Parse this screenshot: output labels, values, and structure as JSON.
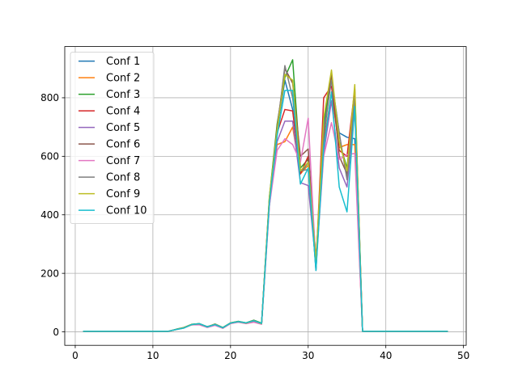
{
  "chart_data": {
    "type": "line",
    "title": "",
    "xlabel": "",
    "ylabel": "",
    "xlim": [
      -1.35,
      50.35
    ],
    "ylim": [
      -46,
      975
    ],
    "xticks": [
      0,
      10,
      20,
      30,
      40,
      50
    ],
    "yticks": [
      0,
      200,
      400,
      600,
      800
    ],
    "grid": true,
    "legend_position": "upper-left",
    "x": [
      1,
      2,
      3,
      4,
      5,
      6,
      7,
      8,
      9,
      10,
      11,
      12,
      13,
      14,
      15,
      16,
      17,
      18,
      19,
      20,
      21,
      22,
      23,
      24,
      25,
      26,
      27,
      28,
      29,
      30,
      31,
      32,
      33,
      34,
      35,
      36,
      37,
      38,
      39,
      40,
      41,
      42,
      43,
      44,
      45,
      46,
      47,
      48
    ],
    "series": [
      {
        "name": "Conf 1",
        "color": "#1f77b4",
        "values": [
          2,
          2,
          2,
          2,
          2,
          2,
          2,
          2,
          2,
          2,
          2,
          2,
          8,
          14,
          25,
          28,
          18,
          25,
          14,
          30,
          35,
          30,
          38,
          28,
          450,
          690,
          860,
          760,
          540,
          580,
          210,
          700,
          870,
          680,
          665,
          660,
          2,
          2,
          2,
          2,
          2,
          2,
          2,
          2,
          2,
          2,
          2,
          2
        ]
      },
      {
        "name": "Conf 2",
        "color": "#ff7f0e",
        "values": [
          2,
          2,
          2,
          2,
          2,
          2,
          2,
          2,
          2,
          2,
          2,
          2,
          8,
          14,
          24,
          26,
          16,
          24,
          13,
          29,
          34,
          29,
          35,
          27,
          440,
          640,
          650,
          700,
          540,
          570,
          230,
          640,
          820,
          630,
          640,
          640,
          2,
          2,
          2,
          2,
          2,
          2,
          2,
          2,
          2,
          2,
          2,
          2
        ]
      },
      {
        "name": "Conf 3",
        "color": "#2ca02c",
        "values": [
          2,
          2,
          2,
          2,
          2,
          2,
          2,
          2,
          2,
          2,
          2,
          2,
          9,
          15,
          26,
          28,
          17,
          27,
          15,
          31,
          36,
          31,
          40,
          30,
          460,
          710,
          870,
          930,
          560,
          590,
          220,
          720,
          870,
          650,
          560,
          820,
          2,
          2,
          2,
          2,
          2,
          2,
          2,
          2,
          2,
          2,
          2,
          2
        ]
      },
      {
        "name": "Conf 4",
        "color": "#d62728",
        "values": [
          2,
          2,
          2,
          2,
          2,
          2,
          2,
          2,
          2,
          2,
          2,
          2,
          8,
          14,
          25,
          27,
          17,
          25,
          14,
          30,
          35,
          30,
          37,
          28,
          450,
          680,
          760,
          755,
          540,
          600,
          220,
          800,
          840,
          620,
          600,
          830,
          2,
          2,
          2,
          2,
          2,
          2,
          2,
          2,
          2,
          2,
          2,
          2
        ]
      },
      {
        "name": "Conf 5",
        "color": "#9467bd",
        "values": [
          2,
          2,
          2,
          2,
          2,
          2,
          2,
          2,
          2,
          2,
          2,
          2,
          8,
          14,
          24,
          26,
          16,
          24,
          13,
          29,
          34,
          29,
          36,
          27,
          430,
          650,
          720,
          720,
          510,
          500,
          230,
          610,
          790,
          560,
          495,
          760,
          2,
          2,
          2,
          2,
          2,
          2,
          2,
          2,
          2,
          2,
          2,
          2
        ]
      },
      {
        "name": "Conf 6",
        "color": "#8c564b",
        "values": [
          2,
          2,
          2,
          2,
          2,
          2,
          2,
          2,
          2,
          2,
          2,
          2,
          8,
          14,
          25,
          27,
          17,
          26,
          14,
          30,
          35,
          30,
          38,
          28,
          450,
          700,
          900,
          850,
          600,
          625,
          250,
          660,
          880,
          600,
          540,
          790,
          2,
          2,
          2,
          2,
          2,
          2,
          2,
          2,
          2,
          2,
          2,
          2
        ]
      },
      {
        "name": "Conf 7",
        "color": "#e377c2",
        "values": [
          2,
          2,
          2,
          2,
          2,
          2,
          2,
          2,
          2,
          2,
          2,
          2,
          8,
          13,
          24,
          24,
          15,
          22,
          12,
          28,
          33,
          28,
          33,
          26,
          430,
          620,
          660,
          640,
          580,
          730,
          225,
          600,
          715,
          590,
          605,
          610,
          2,
          2,
          2,
          2,
          2,
          2,
          2,
          2,
          2,
          2,
          2,
          2
        ]
      },
      {
        "name": "Conf 8",
        "color": "#7f7f7f",
        "values": [
          2,
          2,
          2,
          2,
          2,
          2,
          2,
          2,
          2,
          2,
          2,
          2,
          8,
          14,
          25,
          27,
          17,
          27,
          14,
          30,
          35,
          30,
          39,
          28,
          455,
          690,
          910,
          800,
          550,
          555,
          215,
          680,
          860,
          680,
          520,
          800,
          2,
          2,
          2,
          2,
          2,
          2,
          2,
          2,
          2,
          2,
          2,
          2
        ]
      },
      {
        "name": "Conf 9",
        "color": "#bcbd22",
        "values": [
          2,
          2,
          2,
          2,
          2,
          2,
          2,
          2,
          2,
          2,
          2,
          2,
          8,
          14,
          25,
          28,
          17,
          26,
          14,
          30,
          35,
          30,
          38,
          28,
          460,
          690,
          880,
          860,
          550,
          580,
          240,
          730,
          895,
          650,
          550,
          845,
          2,
          2,
          2,
          2,
          2,
          2,
          2,
          2,
          2,
          2,
          2,
          2
        ]
      },
      {
        "name": "Conf 10",
        "color": "#17becf",
        "values": [
          2,
          2,
          2,
          2,
          2,
          2,
          2,
          2,
          2,
          2,
          2,
          2,
          8,
          13,
          25,
          28,
          17,
          25,
          14,
          30,
          35,
          31,
          38,
          29,
          440,
          670,
          825,
          825,
          505,
          560,
          210,
          630,
          820,
          495,
          410,
          770,
          2,
          2,
          2,
          2,
          2,
          2,
          2,
          2,
          2,
          2,
          2,
          2
        ]
      }
    ]
  }
}
